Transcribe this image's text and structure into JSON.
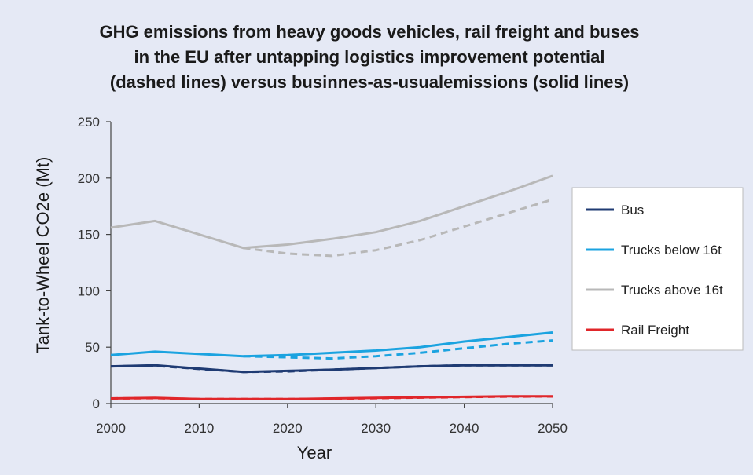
{
  "chart_data": {
    "type": "line",
    "title_lines": [
      "GHG emissions from heavy goods vehicles, rail freight and buses",
      "in the EU after untapping logistics improvement potential",
      "(dashed lines) versus businnes-as-usualemissions (solid lines)"
    ],
    "xlabel": "Year",
    "ylabel": "Tank-to-Wheel CO2e (Mt)",
    "xlim": [
      2000,
      2050
    ],
    "ylim": [
      0,
      250
    ],
    "x_ticks": [
      "2000",
      "2010",
      "2020",
      "2030",
      "2040",
      "2050"
    ],
    "y_ticks": [
      "0",
      "50",
      "100",
      "150",
      "200",
      "250"
    ],
    "grid": false,
    "legend_position": "right",
    "series": [
      {
        "name": "Bus",
        "color": "#1f3b73",
        "style": "solid",
        "x": [
          2000,
          2005,
          2015,
          2020,
          2025,
          2030,
          2035,
          2040,
          2045,
          2050
        ],
        "y": [
          33,
          34,
          28,
          29,
          30,
          31.5,
          33,
          34,
          34,
          34
        ]
      },
      {
        "name": "Trucks below 16t",
        "color": "#1ba3e0",
        "style": "solid",
        "x": [
          2000,
          2005,
          2015,
          2020,
          2025,
          2030,
          2035,
          2040,
          2045,
          2050
        ],
        "y": [
          43,
          46,
          42,
          43,
          45,
          47,
          50,
          55,
          59,
          63
        ]
      },
      {
        "name": "Trucks above 16t",
        "color": "#b8b8b8",
        "style": "solid",
        "x": [
          2000,
          2005,
          2015,
          2020,
          2025,
          2030,
          2035,
          2040,
          2045,
          2050
        ],
        "y": [
          156,
          162,
          138,
          141,
          146,
          152,
          162,
          175,
          188,
          202
        ]
      },
      {
        "name": "Rail Freight",
        "color": "#e0262a",
        "style": "solid",
        "x": [
          2000,
          2005,
          2010,
          2015,
          2020,
          2025,
          2030,
          2035,
          2040,
          2045,
          2050
        ],
        "y": [
          4.5,
          5,
          4,
          4,
          4,
          4.5,
          5,
          5.5,
          6,
          6.5,
          6.5
        ]
      },
      {
        "color": "#1f3b73",
        "style": "dashed",
        "x": [
          2000,
          2005,
          2015,
          2020,
          2025,
          2030,
          2035,
          2040,
          2045,
          2050
        ],
        "y": [
          33,
          33.5,
          28,
          28.5,
          30,
          31.5,
          33,
          34,
          34,
          34
        ]
      },
      {
        "color": "#1ba3e0",
        "style": "dashed",
        "x": [
          2015,
          2020,
          2025,
          2030,
          2035,
          2040,
          2045,
          2050
        ],
        "y": [
          42,
          41,
          40,
          42,
          45,
          49,
          53,
          56
        ]
      },
      {
        "color": "#b8b8b8",
        "style": "dashed",
        "x": [
          2015,
          2020,
          2025,
          2030,
          2035,
          2040,
          2045,
          2050
        ],
        "y": [
          138,
          133,
          131,
          136,
          145,
          157,
          169,
          181
        ]
      },
      {
        "color": "#e0262a",
        "style": "dashed",
        "x": [
          2000,
          2005,
          2010,
          2015,
          2020,
          2025,
          2030,
          2035,
          2040,
          2045,
          2050
        ],
        "y": [
          4.5,
          4.8,
          4,
          4,
          4,
          4.3,
          4.8,
          5.3,
          5.8,
          6.2,
          6.3
        ]
      }
    ],
    "legend": [
      "Bus",
      "Trucks below 16t",
      "Trucks above 16t",
      "Rail Freight"
    ]
  }
}
